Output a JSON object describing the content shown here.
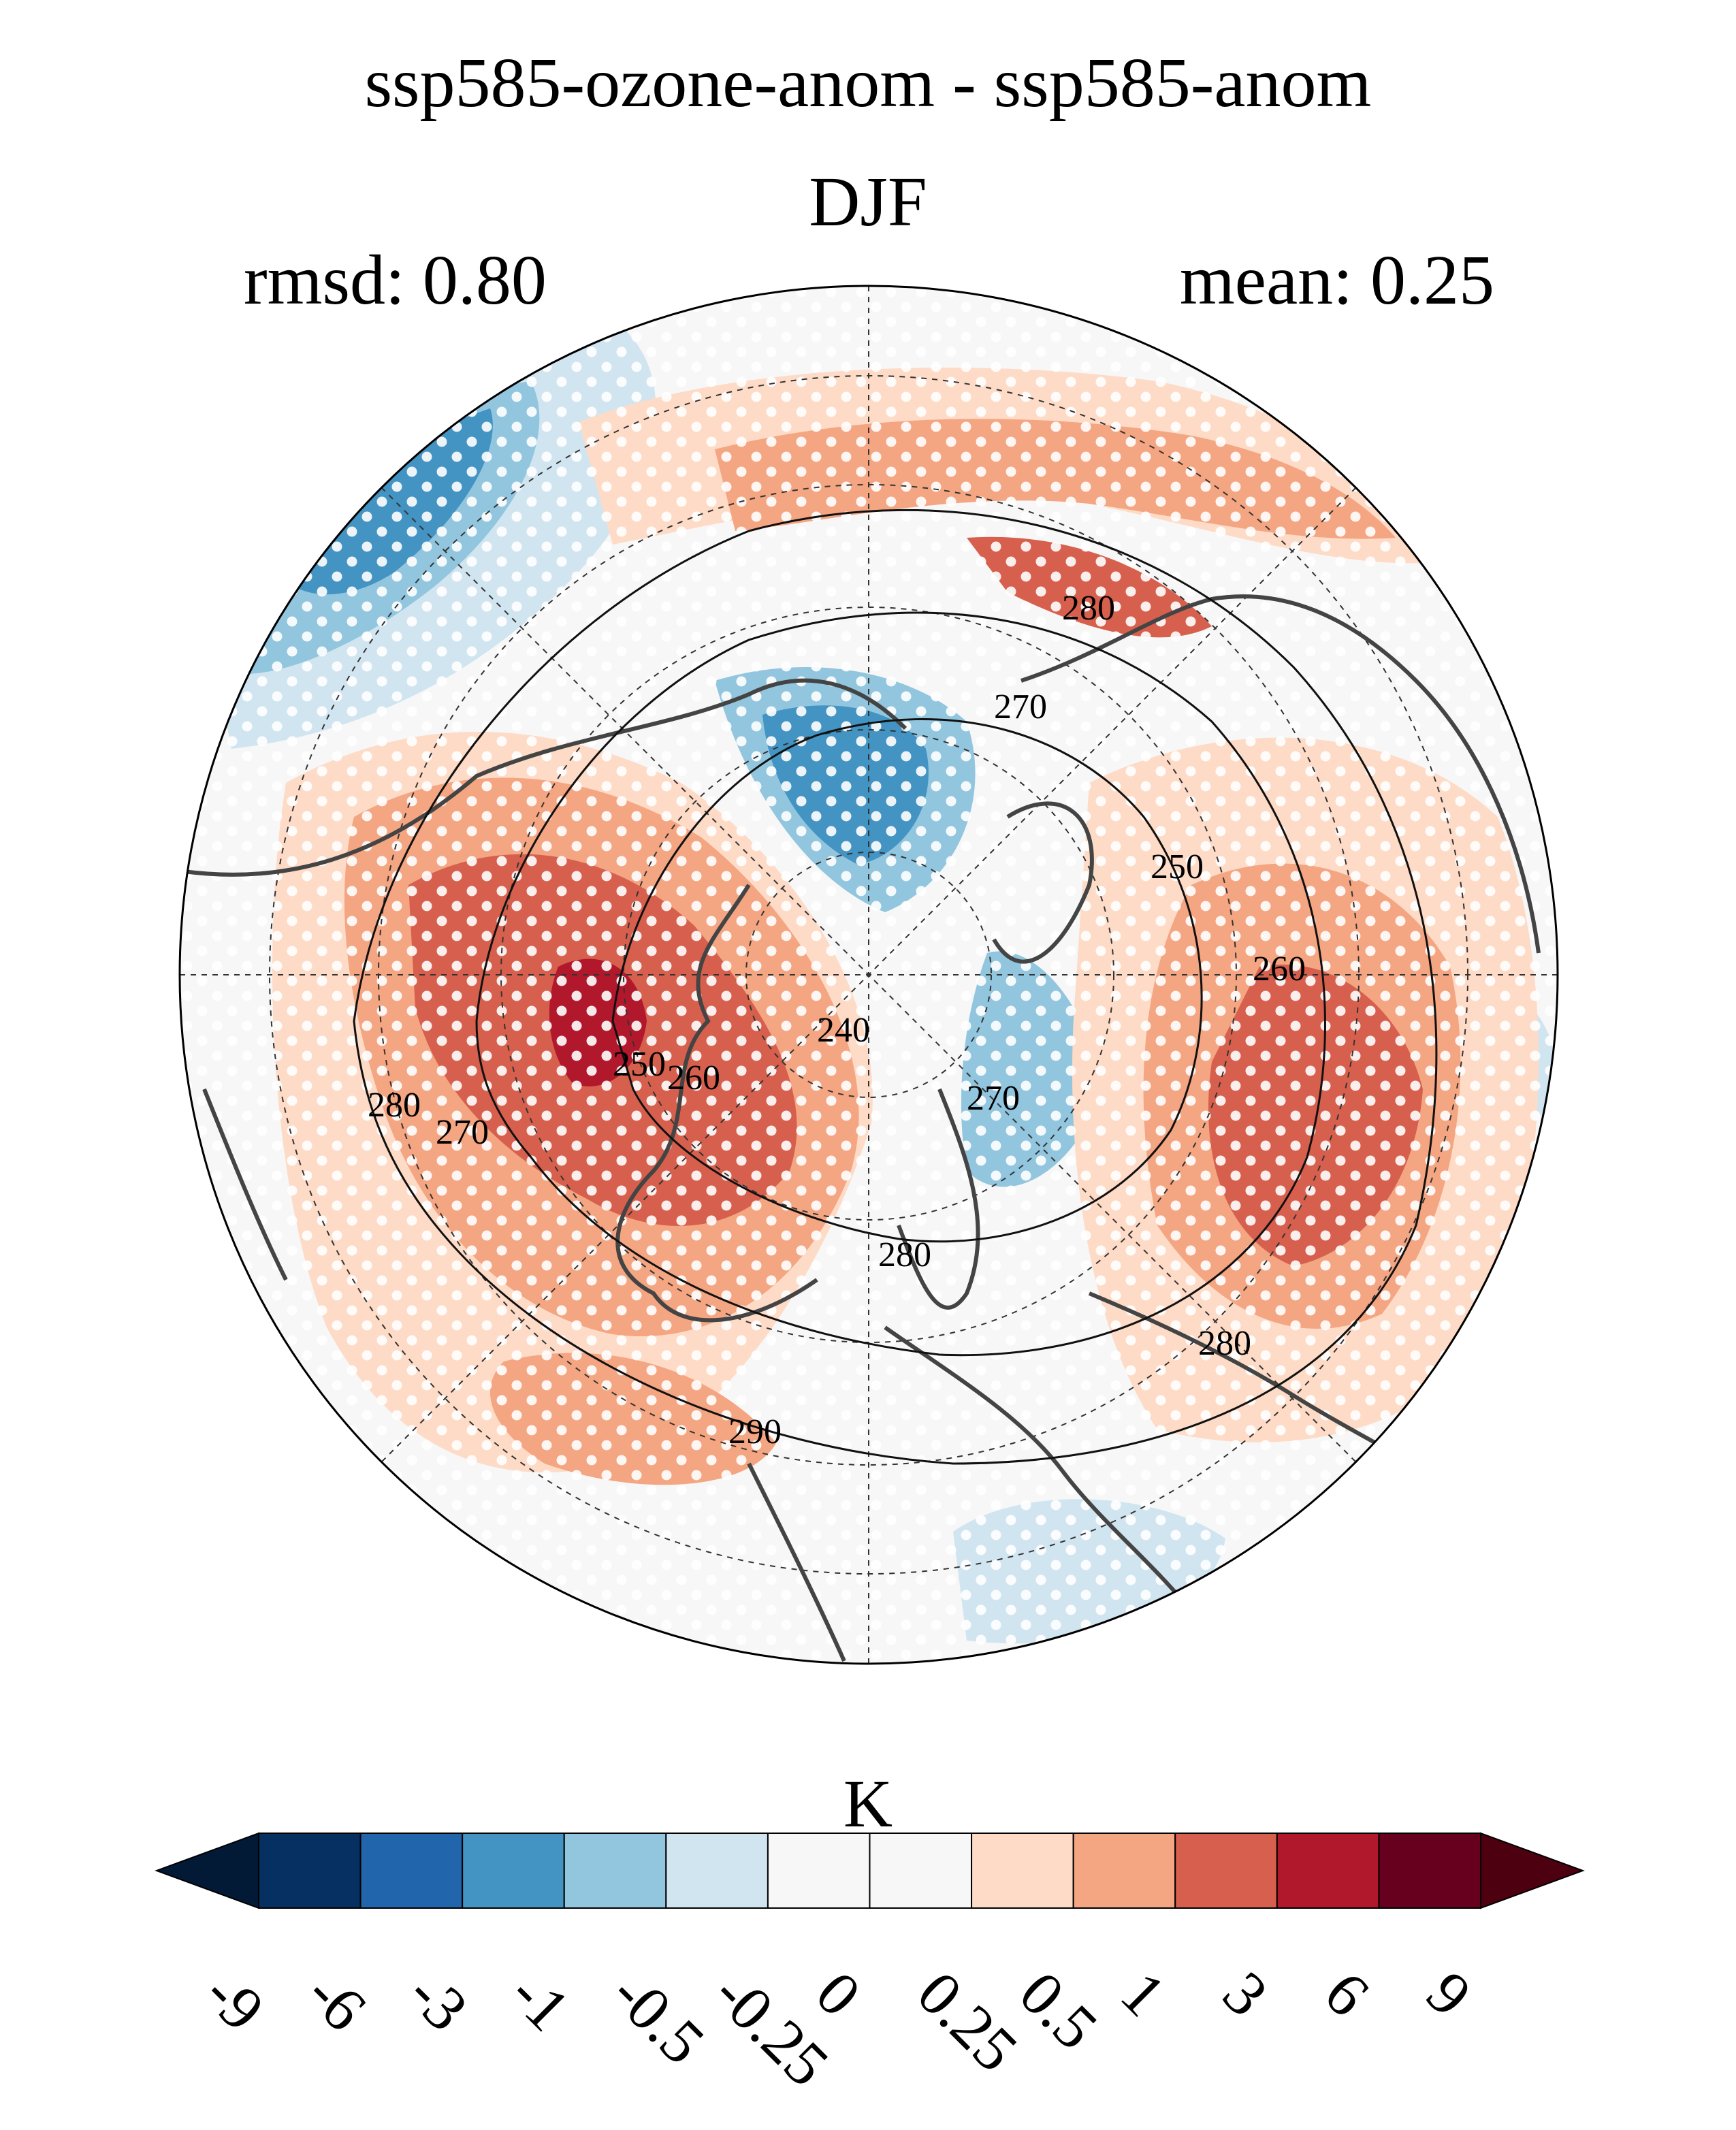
{
  "title": "ssp585-ozone-anom - ssp585-anom",
  "season": "DJF",
  "rmsd_label": "rmsd: 0.80",
  "mean_label": "mean: 0.25",
  "colorbar": {
    "unit": "K",
    "ticks": [
      "-9",
      "-6",
      "-3",
      "-1",
      "-0.5",
      "-0.25",
      "0",
      "0.25",
      "0.5",
      "1",
      "3",
      "6",
      "9"
    ],
    "colors": [
      "#053061",
      "#2166ac",
      "#4393c3",
      "#92c5de",
      "#d1e5f0",
      "#f7f7f7",
      "#f7f7f7",
      "#fddbc7",
      "#f4a582",
      "#d6604d",
      "#b2182b",
      "#67001f"
    ],
    "under_color": "#021a36",
    "over_color": "#4d0010"
  },
  "contour_labels": [
    "280",
    "270",
    "250",
    "260",
    "240",
    "280",
    "270",
    "280",
    "250",
    "260",
    "270",
    "280",
    "290"
  ],
  "map": {
    "projection": "north-polar-stereographic",
    "stippling": "white dots mark significance",
    "palette": {
      "ocean_white": "#f7f7f7",
      "light_red": "#fddbc7",
      "mid_red": "#f4a582",
      "red": "#d6604d",
      "dark_red": "#b2182b",
      "light_blue": "#d1e5f0",
      "mid_blue": "#92c5de",
      "blue": "#4393c3",
      "coast": "#444444"
    }
  }
}
